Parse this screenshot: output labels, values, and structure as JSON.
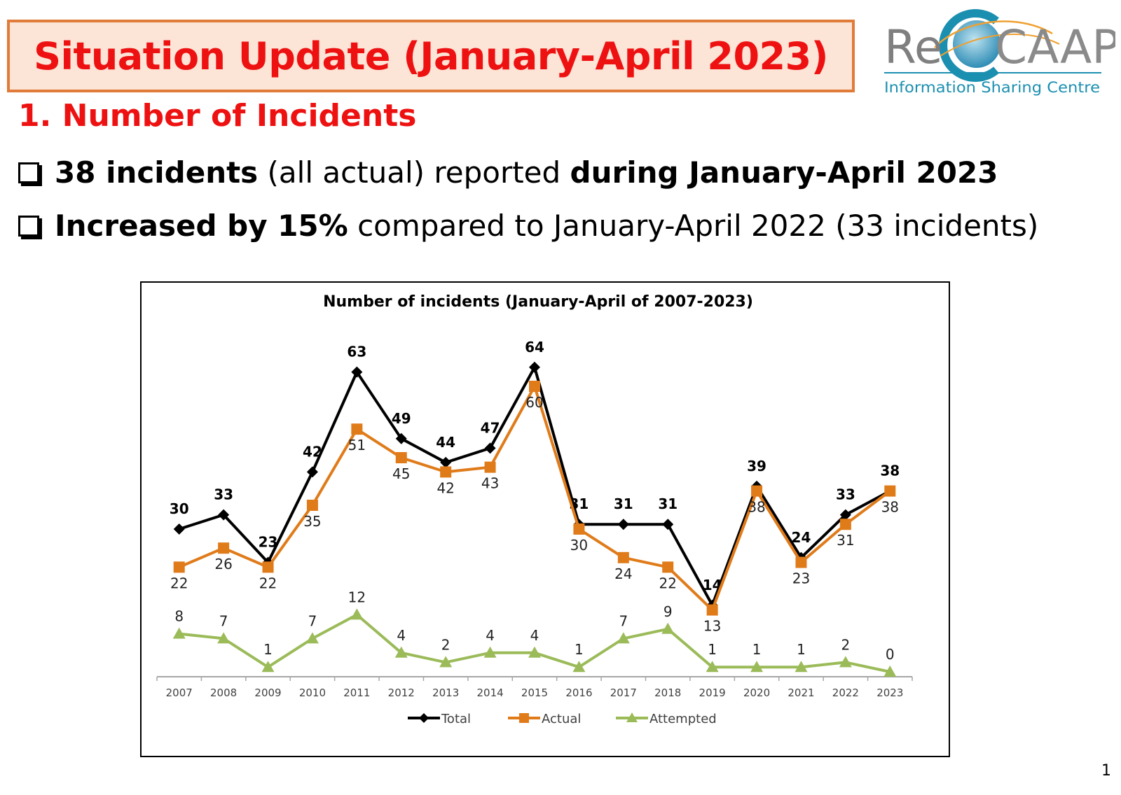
{
  "header": {
    "title": "Situation Update (January-April 2023)"
  },
  "logo": {
    "brand_re": "Re",
    "brand_caap": "CAAP",
    "tagline": "Information Sharing Centre",
    "colors": {
      "gray": "#7f7f7f",
      "teal": "#1b8fb0",
      "orange": "#f0a030",
      "globe": "#4aa3c8"
    }
  },
  "section": {
    "heading": "1. Number of Incidents"
  },
  "bullets": [
    {
      "bold1": "38 incidents",
      "normal1": " (all actual) reported ",
      "bold2": "during January-April 2023"
    },
    {
      "bold1": "Increased by 15%",
      "normal1": " compared to January-April 2022 (33 incidents)"
    }
  ],
  "page_number": "1",
  "chart_data": {
    "type": "line",
    "title": "Number of incidents (January-April of 2007-2023)",
    "x": [
      "2007",
      "2008",
      "2009",
      "2010",
      "2011",
      "2012",
      "2013",
      "2014",
      "2015",
      "2016",
      "2017",
      "2018",
      "2019",
      "2020",
      "2021",
      "2022",
      "2023"
    ],
    "ylim": [
      0,
      70
    ],
    "grid": false,
    "legend": "bottom",
    "series": [
      {
        "name": "Total",
        "color": "#000000",
        "marker": "diamond",
        "values": [
          30,
          33,
          23,
          42,
          63,
          49,
          44,
          47,
          64,
          31,
          31,
          31,
          14,
          39,
          24,
          33,
          38
        ]
      },
      {
        "name": "Actual",
        "color": "#e07b1a",
        "marker": "square",
        "values": [
          22,
          26,
          22,
          35,
          51,
          45,
          42,
          43,
          60,
          30,
          24,
          22,
          13,
          38,
          23,
          31,
          38
        ]
      },
      {
        "name": "Attempted",
        "color": "#9bbb59",
        "marker": "triangle",
        "values": [
          8,
          7,
          1,
          7,
          12,
          4,
          2,
          4,
          4,
          1,
          7,
          9,
          1,
          1,
          1,
          2,
          0
        ]
      }
    ]
  }
}
